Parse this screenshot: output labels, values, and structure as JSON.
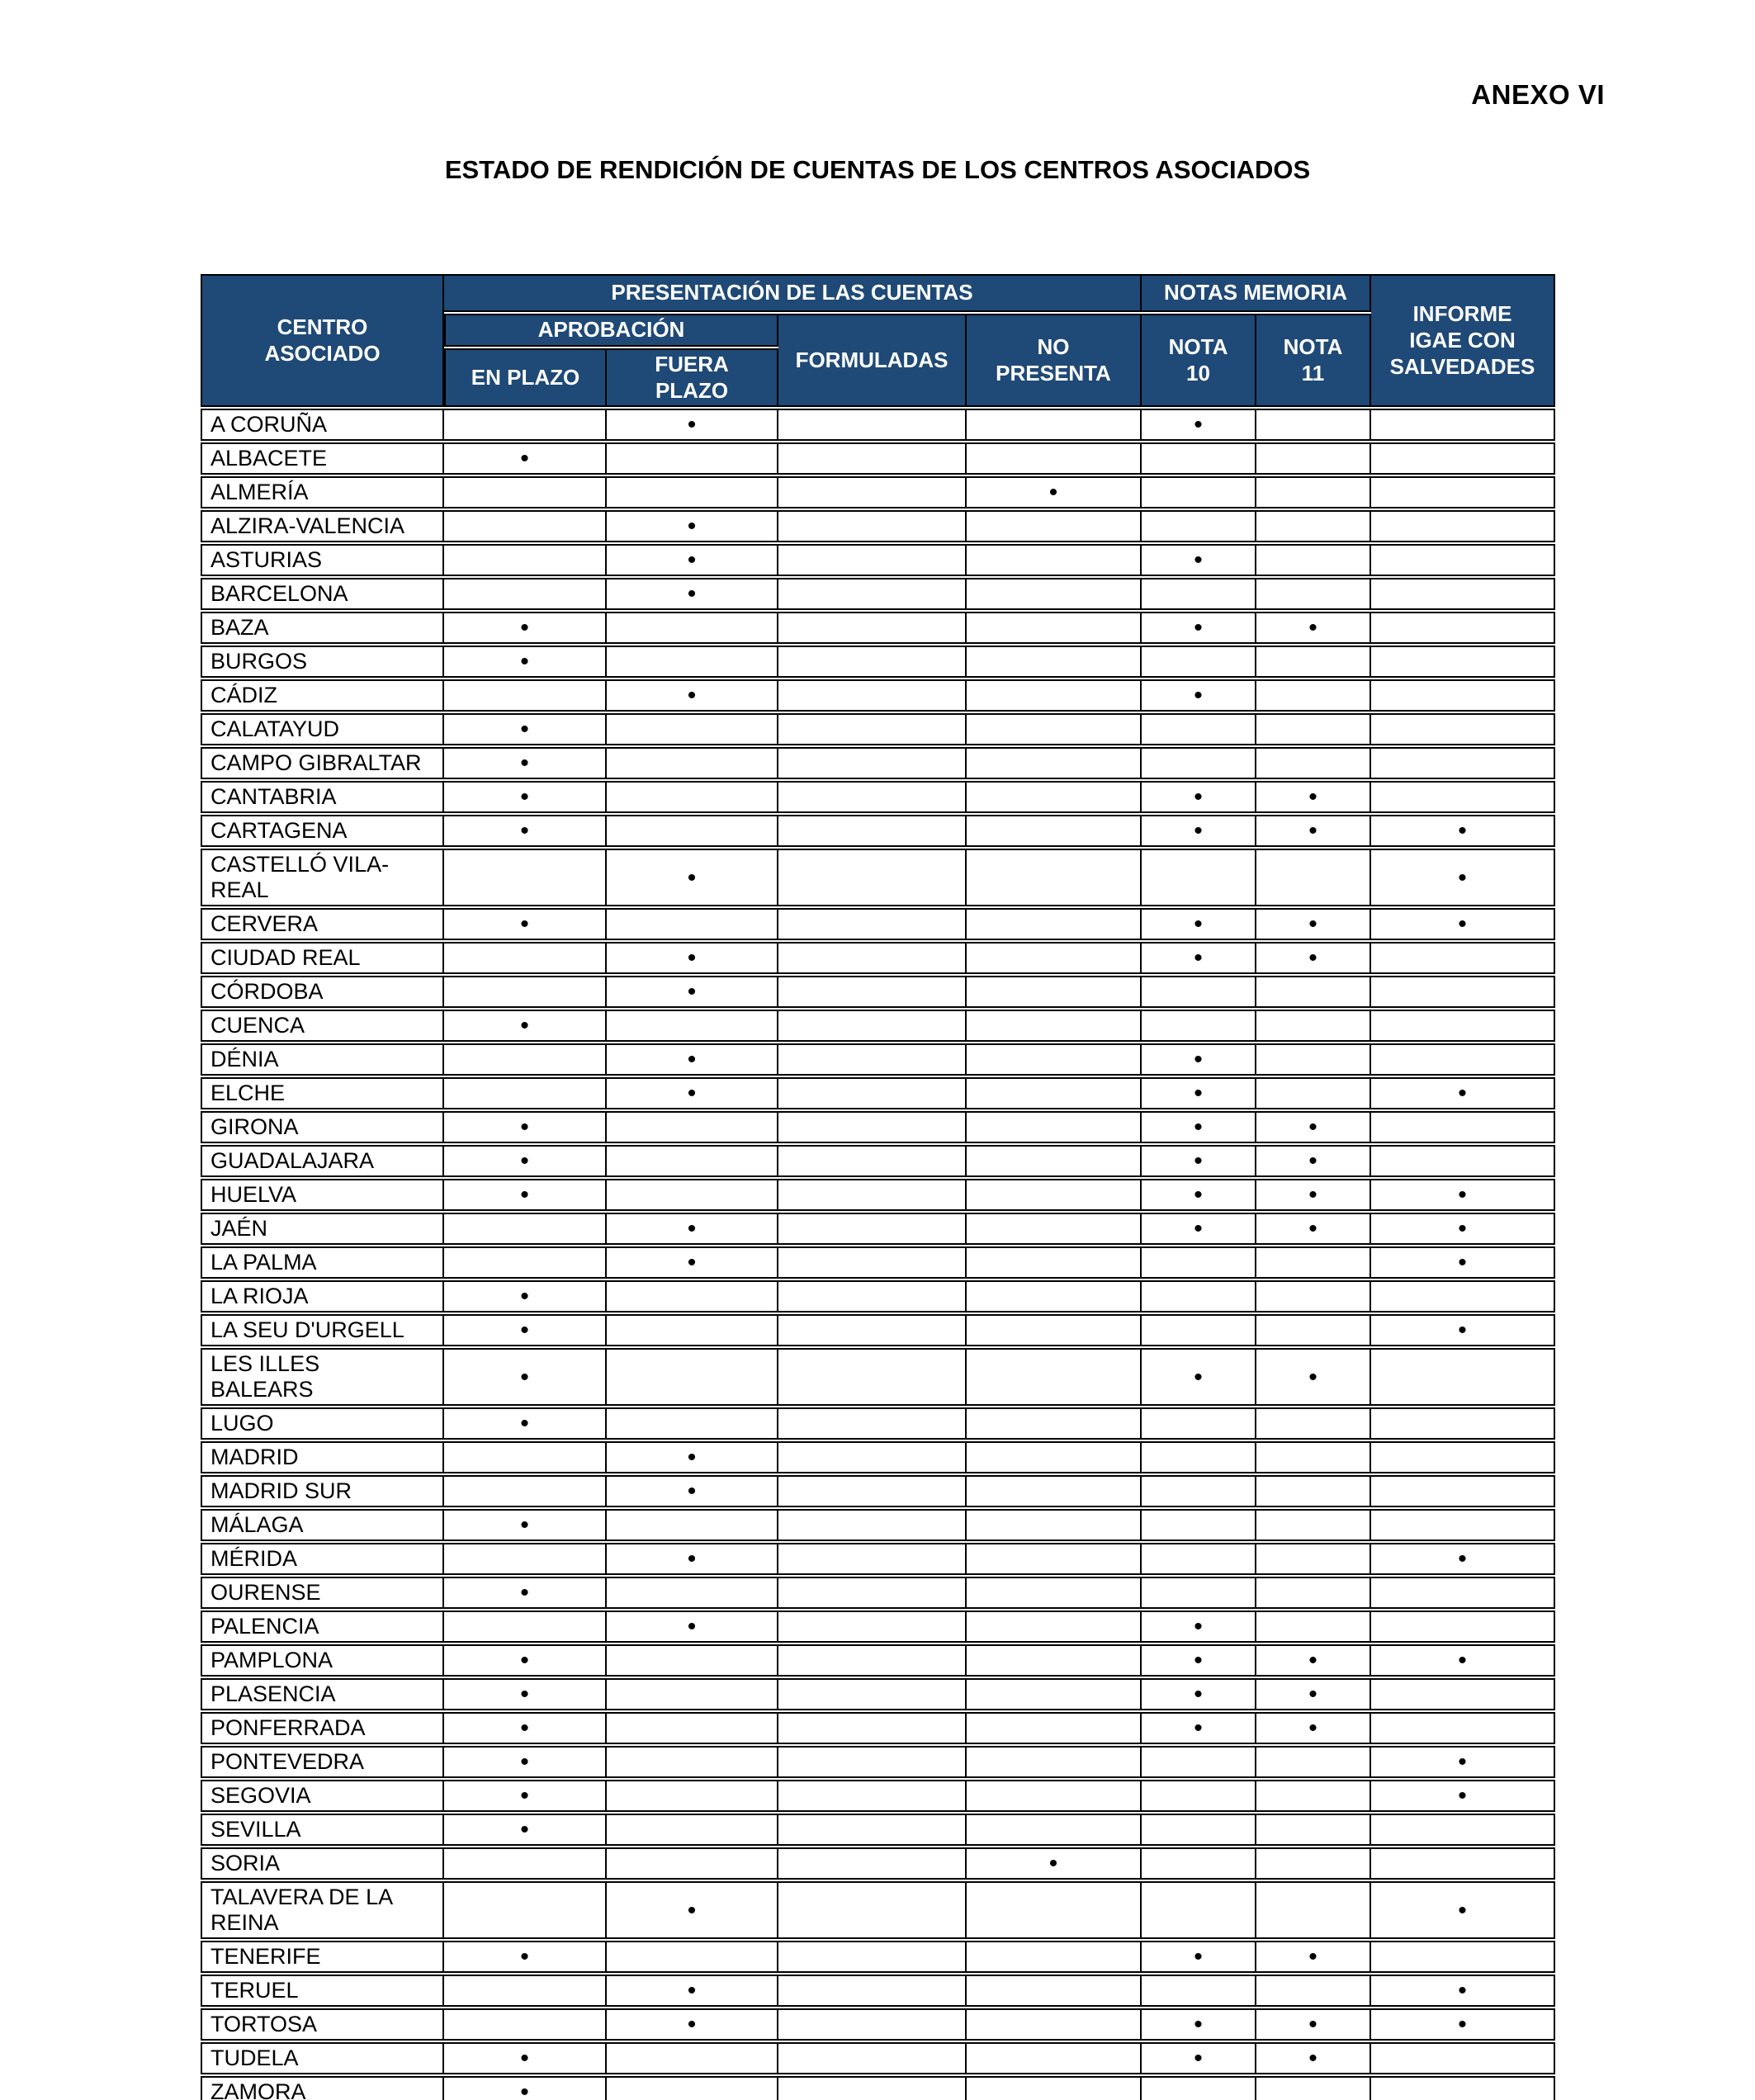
{
  "annex_label": "ANEXO VI",
  "title": "ESTADO DE RENDICIÓN DE CUENTAS DE LOS CENTROS ASOCIADOS",
  "colors": {
    "header_bg": "#1f4976",
    "header_text": "#ffffff",
    "border": "#000000"
  },
  "table": {
    "mark_glyph": "•",
    "headers": {
      "centro": "CENTRO\nASOCIADO",
      "presentacion": "PRESENTACIÓN DE LAS CUENTAS",
      "aprobacion": "APROBACIÓN",
      "en_plazo": "EN PLAZO",
      "fuera_plazo": "FUERA\nPLAZO",
      "formuladas": "FORMULADAS",
      "no_presenta": "NO\nPRESENTA",
      "notas_memoria": "NOTAS MEMORIA",
      "nota_10": "NOTA\n10",
      "nota_11": "NOTA\n11",
      "informe": "INFORME\nIGAE CON\nSALVEDADES"
    },
    "columns_order": [
      "ep",
      "fp",
      "fo",
      "np",
      "n10",
      "n11",
      "ig"
    ],
    "rows": [
      {
        "centro": "A CORUÑA",
        "marks": [
          "fp",
          "n10"
        ]
      },
      {
        "centro": "ALBACETE",
        "marks": [
          "ep"
        ]
      },
      {
        "centro": "ALMERÍA",
        "marks": [
          "np"
        ]
      },
      {
        "centro": "ALZIRA-VALENCIA",
        "marks": [
          "fp"
        ]
      },
      {
        "centro": "ASTURIAS",
        "marks": [
          "fp",
          "n10"
        ]
      },
      {
        "centro": "BARCELONA",
        "marks": [
          "fp"
        ]
      },
      {
        "centro": "BAZA",
        "marks": [
          "ep",
          "n10",
          "n11"
        ]
      },
      {
        "centro": "BURGOS",
        "marks": [
          "ep"
        ]
      },
      {
        "centro": "CÁDIZ",
        "marks": [
          "fp",
          "n10"
        ]
      },
      {
        "centro": "CALATAYUD",
        "marks": [
          "ep"
        ]
      },
      {
        "centro": "CAMPO GIBRALTAR",
        "marks": [
          "ep"
        ]
      },
      {
        "centro": "CANTABRIA",
        "marks": [
          "ep",
          "n10",
          "n11"
        ]
      },
      {
        "centro": "CARTAGENA",
        "marks": [
          "ep",
          "n10",
          "n11",
          "ig"
        ]
      },
      {
        "centro": "CASTELLÓ VILA-\nREAL",
        "marks": [
          "fp",
          "ig"
        ]
      },
      {
        "centro": "CERVERA",
        "marks": [
          "ep",
          "n10",
          "n11",
          "ig"
        ]
      },
      {
        "centro": "CIUDAD REAL",
        "marks": [
          "fp",
          "n10",
          "n11"
        ]
      },
      {
        "centro": "CÓRDOBA",
        "marks": [
          "fp"
        ]
      },
      {
        "centro": "CUENCA",
        "marks": [
          "ep"
        ]
      },
      {
        "centro": "DÉNIA",
        "marks": [
          "fp",
          "n10"
        ]
      },
      {
        "centro": "ELCHE",
        "marks": [
          "fp",
          "n10",
          "ig"
        ]
      },
      {
        "centro": "GIRONA",
        "marks": [
          "ep",
          "n10",
          "n11"
        ]
      },
      {
        "centro": "GUADALAJARA",
        "marks": [
          "ep",
          "n10",
          "n11"
        ]
      },
      {
        "centro": "HUELVA",
        "marks": [
          "ep",
          "n10",
          "n11",
          "ig"
        ]
      },
      {
        "centro": "JAÉN",
        "marks": [
          "fp",
          "n10",
          "n11",
          "ig"
        ]
      },
      {
        "centro": "LA PALMA",
        "marks": [
          "fp",
          "ig"
        ]
      },
      {
        "centro": "LA RIOJA",
        "marks": [
          "ep"
        ]
      },
      {
        "centro": "LA SEU D'URGELL",
        "marks": [
          "ep",
          "ig"
        ]
      },
      {
        "centro": "LES ILLES\nBALEARS",
        "marks": [
          "ep",
          "n10",
          "n11"
        ]
      },
      {
        "centro": "LUGO",
        "marks": [
          "ep"
        ]
      },
      {
        "centro": "MADRID",
        "marks": [
          "fp"
        ]
      },
      {
        "centro": "MADRID SUR",
        "marks": [
          "fp"
        ]
      },
      {
        "centro": "MÁLAGA",
        "marks": [
          "ep"
        ]
      },
      {
        "centro": "MÉRIDA",
        "marks": [
          "fp",
          "ig"
        ]
      },
      {
        "centro": "OURENSE",
        "marks": [
          "ep"
        ]
      },
      {
        "centro": "PALENCIA",
        "marks": [
          "fp",
          "n10"
        ]
      },
      {
        "centro": "PAMPLONA",
        "marks": [
          "ep",
          "n10",
          "n11",
          "ig"
        ]
      },
      {
        "centro": "PLASENCIA",
        "marks": [
          "ep",
          "n10",
          "n11"
        ]
      },
      {
        "centro": "PONFERRADA",
        "marks": [
          "ep",
          "n10",
          "n11"
        ]
      },
      {
        "centro": "PONTEVEDRA",
        "marks": [
          "ep",
          "ig"
        ]
      },
      {
        "centro": "SEGOVIA",
        "marks": [
          "ep",
          "ig"
        ]
      },
      {
        "centro": "SEVILLA",
        "marks": [
          "ep"
        ]
      },
      {
        "centro": "SORIA",
        "marks": [
          "np"
        ]
      },
      {
        "centro": "TALAVERA DE LA\nREINA",
        "marks": [
          "fp",
          "ig"
        ]
      },
      {
        "centro": "TENERIFE",
        "marks": [
          "ep",
          "n10",
          "n11"
        ]
      },
      {
        "centro": "TERUEL",
        "marks": [
          "fp",
          "ig"
        ]
      },
      {
        "centro": "TORTOSA",
        "marks": [
          "fp",
          "n10",
          "n11",
          "ig"
        ]
      },
      {
        "centro": "TUDELA",
        "marks": [
          "ep",
          "n10",
          "n11"
        ]
      },
      {
        "centro": "ZAMORA",
        "marks": [
          "ep"
        ]
      }
    ]
  }
}
